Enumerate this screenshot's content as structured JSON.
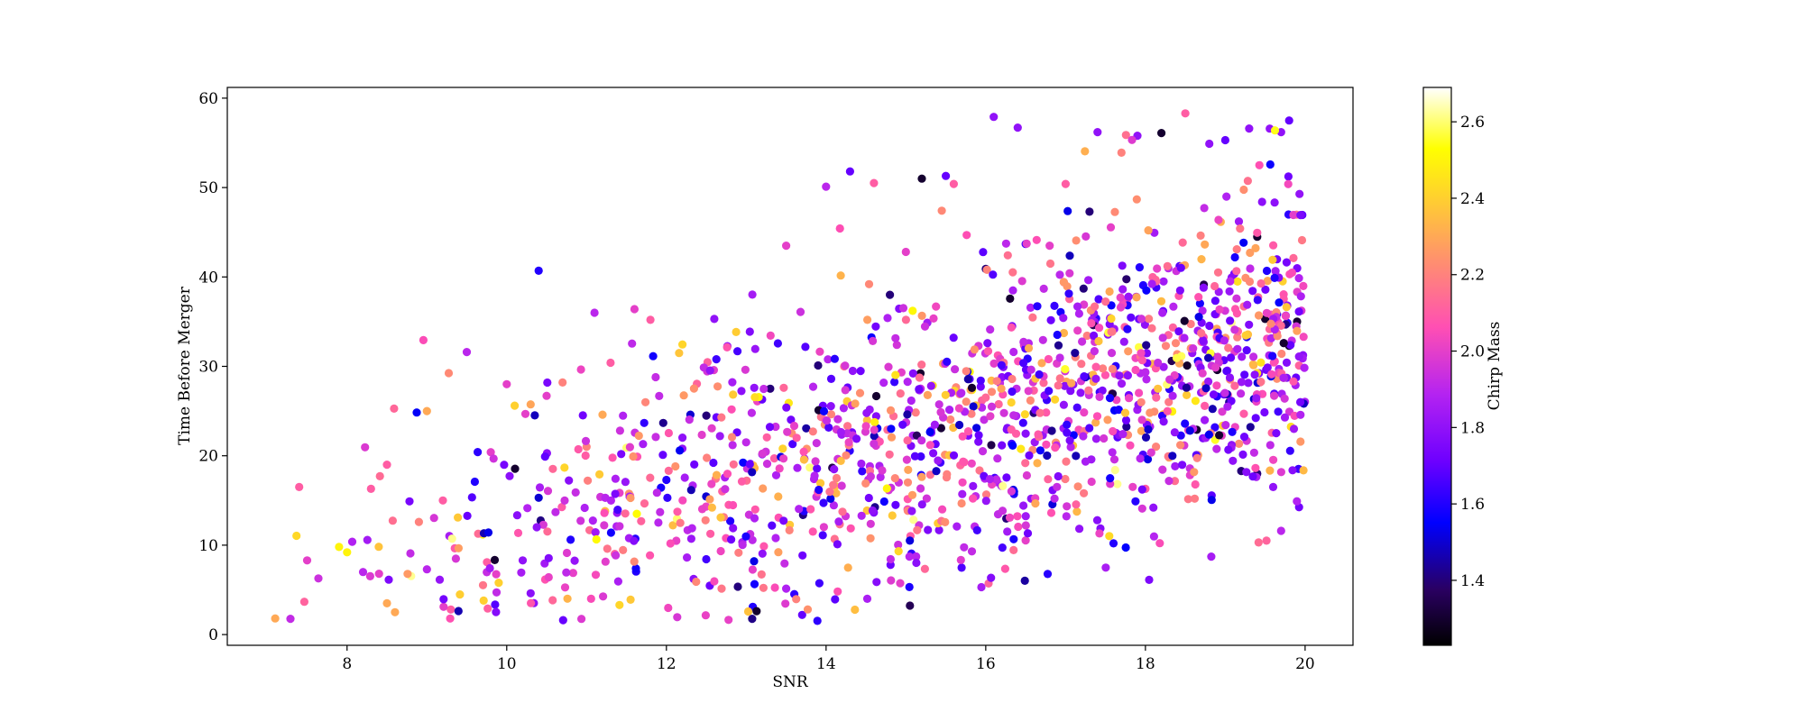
{
  "chart_data": {
    "type": "scatter",
    "xlabel": "SNR",
    "ylabel": "Time Before Merger",
    "xlim": [
      6.5,
      20.6
    ],
    "ylim": [
      -1.2,
      61.2
    ],
    "xticks": [
      8,
      10,
      12,
      14,
      16,
      18,
      20
    ],
    "yticks": [
      0,
      10,
      20,
      30,
      40,
      50,
      60
    ],
    "grid": false,
    "colorbar": {
      "label": "Chirp Mass",
      "colormap": "gnuplot2",
      "range": [
        1.23,
        2.69
      ],
      "ticks": [
        1.4,
        1.6,
        1.8,
        2.0,
        2.2,
        2.4,
        2.6
      ],
      "tick_labels": [
        "1.4",
        "1.6",
        "1.8",
        "2.0",
        "2.2",
        "2.4",
        "2.6"
      ]
    },
    "point_count": 1500,
    "trend": {
      "approx_slope": 2.45,
      "approx_intercept": -15.0,
      "scatter_sd": 8.5
    },
    "points": [
      [
        7.1,
        1.8,
        2.3
      ],
      [
        7.4,
        16.5,
        2.1
      ],
      [
        7.5,
        8.3,
        2.0
      ],
      [
        7.9,
        9.8,
        2.5
      ],
      [
        8.0,
        9.2,
        2.5
      ],
      [
        8.2,
        7.0,
        1.9
      ],
      [
        8.3,
        16.3,
        2.1
      ],
      [
        8.4,
        6.8,
        2.0
      ],
      [
        8.5,
        19.0,
        2.1
      ],
      [
        8.5,
        3.5,
        2.3
      ],
      [
        8.6,
        2.5,
        2.3
      ],
      [
        8.9,
        12.6,
        2.2
      ],
      [
        9.0,
        25.0,
        2.3
      ],
      [
        9.0,
        7.3,
        1.9
      ],
      [
        9.2,
        15.0,
        2.1
      ],
      [
        9.3,
        2.8,
        2.1
      ],
      [
        9.5,
        31.6,
        1.9
      ],
      [
        9.6,
        17.1,
        1.6
      ],
      [
        9.7,
        11.2,
        2.5
      ],
      [
        9.8,
        20.4,
        2.0
      ],
      [
        9.9,
        5.8,
        2.4
      ],
      [
        10.0,
        28.0,
        2.0
      ],
      [
        10.1,
        25.6,
        2.4
      ],
      [
        10.2,
        8.3,
        1.8
      ],
      [
        10.4,
        40.7,
        1.6
      ],
      [
        10.4,
        15.3,
        1.5
      ],
      [
        10.5,
        26.7,
        2.0
      ],
      [
        10.7,
        28.2,
        2.2
      ],
      [
        10.8,
        10.6,
        1.6
      ],
      [
        11.0,
        21.0,
        2.2
      ],
      [
        11.1,
        36.0,
        1.9
      ],
      [
        11.2,
        24.6,
        2.3
      ],
      [
        11.3,
        30.4,
        2.1
      ],
      [
        11.5,
        20.9,
        2.6
      ],
      [
        11.6,
        36.4,
        2.0
      ],
      [
        11.8,
        35.2,
        2.1
      ],
      [
        12.0,
        17.3,
        1.6
      ],
      [
        12.2,
        20.8,
        1.8
      ],
      [
        12.3,
        24.6,
        1.5
      ],
      [
        12.5,
        24.5,
        1.4
      ],
      [
        12.6,
        35.3,
        1.8
      ],
      [
        12.8,
        12.7,
        1.6
      ],
      [
        13.1,
        27.6,
        1.8
      ],
      [
        13.3,
        27.5,
        1.4
      ],
      [
        13.5,
        43.5,
        2.0
      ],
      [
        13.7,
        2.2,
        1.7
      ],
      [
        13.9,
        30.1,
        1.4
      ],
      [
        14.0,
        50.1,
        1.9
      ],
      [
        14.3,
        51.8,
        1.7
      ],
      [
        14.6,
        50.5,
        2.1
      ],
      [
        14.8,
        38.0,
        1.4
      ],
      [
        15.0,
        42.8,
        2.0
      ],
      [
        15.2,
        51.0,
        1.3
      ],
      [
        15.5,
        51.3,
        1.7
      ],
      [
        15.6,
        50.4,
        2.1
      ],
      [
        15.8,
        29.4,
        2.5
      ],
      [
        16.0,
        40.9,
        1.4
      ],
      [
        16.1,
        57.9,
        1.8
      ],
      [
        16.4,
        56.7,
        1.8
      ],
      [
        16.6,
        24.8,
        1.4
      ],
      [
        16.8,
        43.5,
        2.0
      ],
      [
        17.0,
        50.4,
        2.1
      ],
      [
        17.3,
        47.3,
        1.4
      ],
      [
        17.4,
        56.2,
        1.8
      ],
      [
        17.7,
        53.9,
        2.2
      ],
      [
        17.9,
        55.8,
        1.8
      ],
      [
        18.2,
        56.1,
        1.3
      ],
      [
        18.5,
        58.3,
        2.1
      ],
      [
        18.8,
        54.9,
        1.8
      ],
      [
        19.0,
        55.3,
        1.7
      ],
      [
        19.3,
        56.6,
        1.8
      ],
      [
        19.7,
        56.2,
        1.8
      ],
      [
        19.8,
        57.5,
        1.7
      ],
      [
        19.2,
        18.3,
        1.4
      ],
      [
        19.4,
        18.0,
        1.4
      ],
      [
        19.6,
        16.5,
        1.8
      ],
      [
        19.7,
        11.6,
        1.9
      ],
      [
        17.6,
        10.2,
        1.6
      ],
      [
        18.1,
        14.2,
        1.8
      ],
      [
        18.0,
        16.3,
        2.1
      ],
      [
        19.8,
        32.3,
        1.3
      ],
      [
        19.5,
        35.3,
        1.3
      ],
      [
        19.9,
        35.0,
        1.3
      ],
      [
        19.4,
        44.5,
        1.3
      ],
      [
        18.9,
        29.6,
        1.3
      ]
    ]
  }
}
